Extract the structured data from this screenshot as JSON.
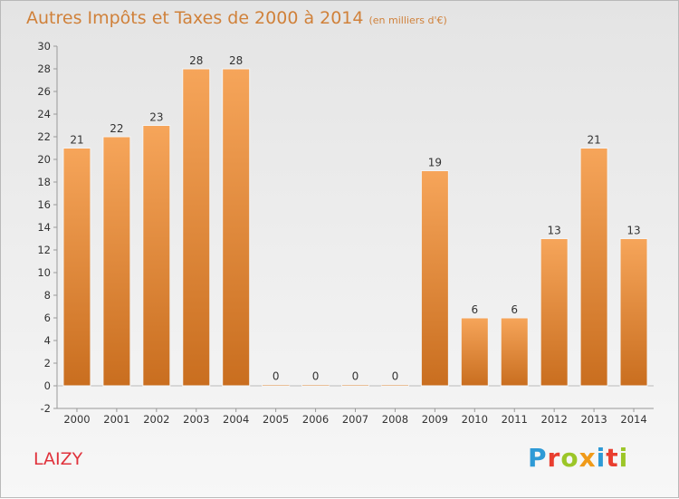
{
  "title": "Autres Impôts et Taxes de 2000 à 2014",
  "unit": "(en milliers d'€)",
  "commune": "LAIZY",
  "logo": {
    "letters": [
      {
        "ch": "P",
        "color": "#2e9ad6"
      },
      {
        "ch": "r",
        "color": "#e93e2f"
      },
      {
        "ch": "o",
        "color": "#9cc628"
      },
      {
        "ch": "x",
        "color": "#f09a19"
      },
      {
        "ch": "i",
        "color": "#2e9ad6"
      },
      {
        "ch": "t",
        "color": "#e93e2f"
      },
      {
        "ch": "i",
        "color": "#9cc628"
      }
    ]
  },
  "chart_data": {
    "type": "bar",
    "categories": [
      "2000",
      "2001",
      "2002",
      "2003",
      "2004",
      "2005",
      "2006",
      "2007",
      "2008",
      "2009",
      "2010",
      "2011",
      "2012",
      "2013",
      "2014"
    ],
    "values": [
      21,
      22,
      23,
      28,
      28,
      0,
      0,
      0,
      0,
      19,
      6,
      6,
      13,
      21,
      13
    ],
    "ylim": [
      -2,
      30
    ],
    "yticks": [
      -2,
      0,
      2,
      4,
      6,
      8,
      10,
      12,
      14,
      16,
      18,
      20,
      22,
      24,
      26,
      28,
      30
    ],
    "grid": false,
    "bar_color": "#f2902f"
  }
}
